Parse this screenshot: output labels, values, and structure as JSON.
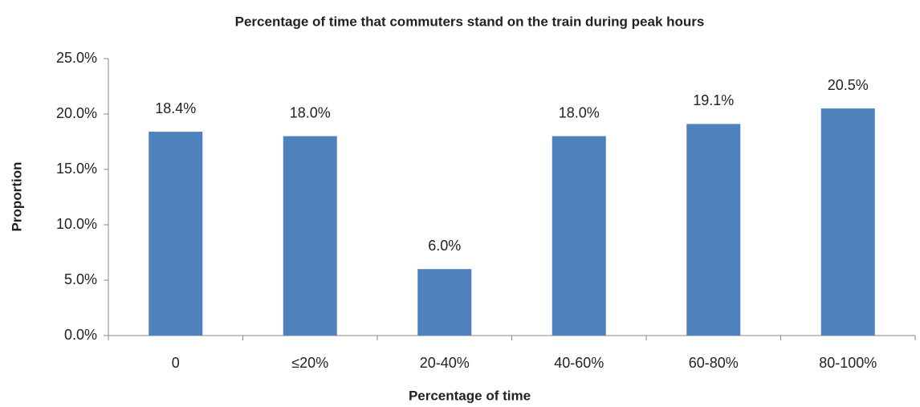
{
  "chart_data": {
    "type": "bar",
    "title": "Percentage of time that commuters stand on the train during peak hours",
    "x_label": "Percentage of time",
    "y_label": "Proportion",
    "categories": [
      "0",
      "≤20%",
      "20-40%",
      "40-60%",
      "60-80%",
      "80-100%"
    ],
    "values": [
      18.4,
      18.0,
      6.0,
      18.0,
      19.1,
      20.5
    ],
    "value_labels": [
      "18.4%",
      "18.0%",
      "6.0%",
      "18.0%",
      "19.1%",
      "20.5%"
    ],
    "color": "#4f81bd",
    "ylim": [
      0,
      25
    ],
    "yticks": [
      {
        "value": 0,
        "label": "0.0%"
      },
      {
        "value": 5,
        "label": "5.0%"
      },
      {
        "value": 10,
        "label": "10.0%"
      },
      {
        "value": 15,
        "label": "15.0%"
      },
      {
        "value": 20,
        "label": "20.0%"
      },
      {
        "value": 25,
        "label": "25.0%"
      }
    ],
    "grid": false
  }
}
